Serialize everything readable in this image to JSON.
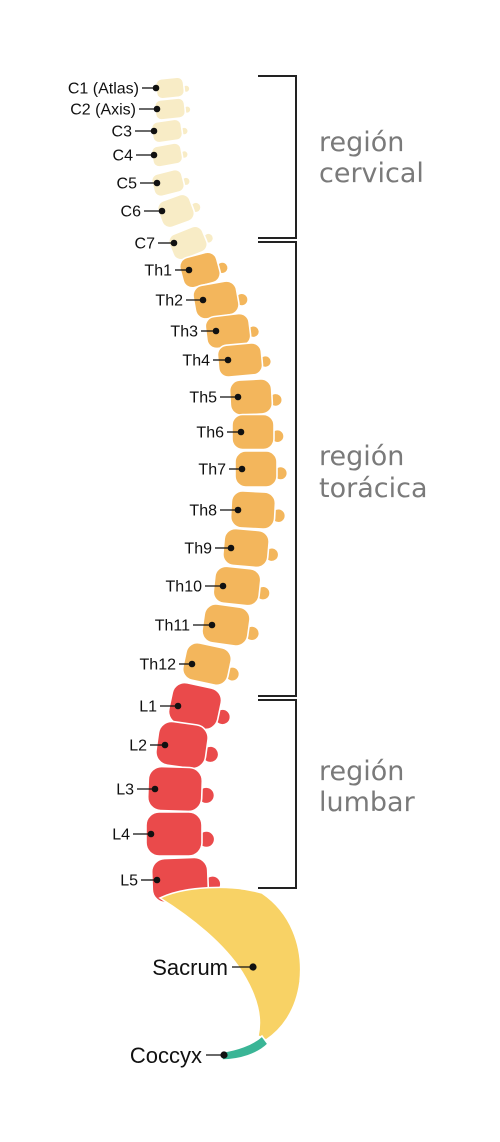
{
  "colors": {
    "cervical": "#f8ecc6",
    "thoracic": "#f3b65c",
    "lumbar": "#ea4a4b",
    "sacrum": "#f8d265",
    "coccyx": "#3ab596",
    "label": "#111111",
    "region_label": "#7a7a7a"
  },
  "vertebrae": [
    {
      "label": "C1 (Atlas)",
      "region": "cervical"
    },
    {
      "label": "C2 (Axis)",
      "region": "cervical"
    },
    {
      "label": "C3",
      "region": "cervical"
    },
    {
      "label": "C4",
      "region": "cervical"
    },
    {
      "label": "C5",
      "region": "cervical"
    },
    {
      "label": "C6",
      "region": "cervical"
    },
    {
      "label": "C7",
      "region": "cervical"
    },
    {
      "label": "Th1",
      "region": "thoracic"
    },
    {
      "label": "Th2",
      "region": "thoracic"
    },
    {
      "label": "Th3",
      "region": "thoracic"
    },
    {
      "label": "Th4",
      "region": "thoracic"
    },
    {
      "label": "Th5",
      "region": "thoracic"
    },
    {
      "label": "Th6",
      "region": "thoracic"
    },
    {
      "label": "Th7",
      "region": "thoracic"
    },
    {
      "label": "Th8",
      "region": "thoracic"
    },
    {
      "label": "Th9",
      "region": "thoracic"
    },
    {
      "label": "Th10",
      "region": "thoracic"
    },
    {
      "label": "Th11",
      "region": "thoracic"
    },
    {
      "label": "Th12",
      "region": "thoracic"
    },
    {
      "label": "L1",
      "region": "lumbar"
    },
    {
      "label": "L2",
      "region": "lumbar"
    },
    {
      "label": "L3",
      "region": "lumbar"
    },
    {
      "label": "L4",
      "region": "lumbar"
    },
    {
      "label": "L5",
      "region": "lumbar"
    }
  ],
  "sacrum": {
    "label": "Sacrum"
  },
  "coccyx": {
    "label": "Coccyx"
  },
  "regions": {
    "cervical": {
      "line1": "región",
      "line2": "cervical"
    },
    "thoracic": {
      "line1": "región",
      "line2": "torácica"
    },
    "lumbar": {
      "line1": "región",
      "line2": "lumbar"
    }
  }
}
